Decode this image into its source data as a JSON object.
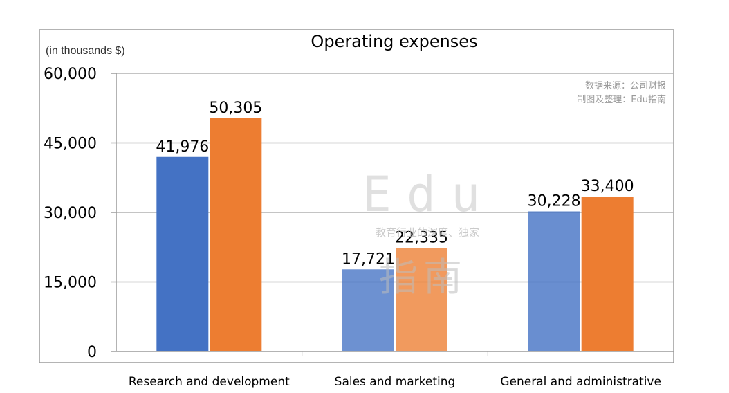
{
  "chart_data": {
    "type": "bar",
    "title": "Operating expenses",
    "unit_label": "(in thousands $)",
    "categories": [
      "Research and development",
      "Sales and marketing",
      "General and administrative"
    ],
    "series": [
      {
        "values": [
          41976,
          17721,
          30228
        ],
        "color": "#4472C4"
      },
      {
        "values": [
          50305,
          22335,
          33400
        ],
        "color": "#ED7D31"
      }
    ],
    "data_labels": [
      [
        "41,976",
        "17,721",
        "30,228"
      ],
      [
        "50,305",
        "22,335",
        "33,400"
      ]
    ],
    "ylim": [
      0,
      60000
    ],
    "yticks": [
      0,
      15000,
      30000,
      45000,
      60000
    ],
    "ytick_labels": [
      "0",
      "15,000",
      "30,000",
      "45,000",
      "60,000"
    ],
    "grid": true,
    "legend": "none"
  },
  "source_note": {
    "line1": "数据来源：公司财报",
    "line2": "制图及整理：Edu指南"
  },
  "watermark": {
    "brand": "Edu",
    "tagline": "教育行业的深度、独家",
    "han": "指南"
  }
}
